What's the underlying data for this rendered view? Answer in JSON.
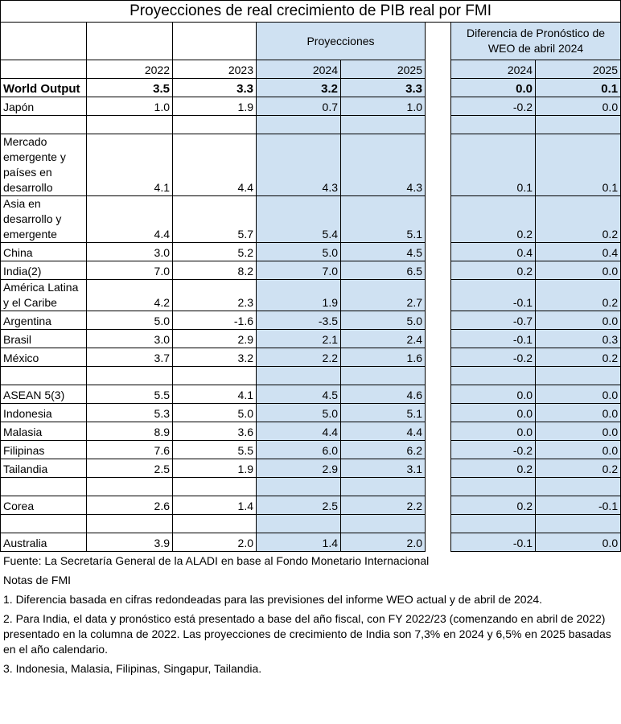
{
  "title": "Proyecciones de real crecimiento de PIB real por FMI",
  "headers": {
    "projections": "Proyecciones",
    "difference": "Diferencia de Pronóstico de WEO de abril 2024",
    "years": [
      "2022",
      "2023",
      "2024",
      "2025",
      "2024",
      "2025"
    ]
  },
  "rows": [
    {
      "label": "World Output",
      "values": [
        "3.5",
        "3.3",
        "3.2",
        "3.3",
        "0.0",
        "0.1"
      ],
      "bold": true
    },
    {
      "label": "Japón",
      "values": [
        "1.0",
        "1.9",
        "0.7",
        "1.0",
        "-0.2",
        "0.0"
      ]
    },
    {
      "blank": true
    },
    {
      "label": "Mercado emergente y países en desarrollo",
      "values": [
        "4.1",
        "4.4",
        "4.3",
        "4.3",
        "0.1",
        "0.1"
      ]
    },
    {
      "label": "Asia en desarrollo y emergente",
      "values": [
        "4.4",
        "5.7",
        "5.4",
        "5.1",
        "0.2",
        "0.2"
      ]
    },
    {
      "label": "China",
      "values": [
        "3.0",
        "5.2",
        "5.0",
        "4.5",
        "0.4",
        "0.4"
      ]
    },
    {
      "label": "India(2)",
      "values": [
        "7.0",
        "8.2",
        "7.0",
        "6.5",
        "0.2",
        "0.0"
      ]
    },
    {
      "label": "América Latina y el Caribe",
      "values": [
        "4.2",
        "2.3",
        "1.9",
        "2.7",
        "-0.1",
        "0.2"
      ]
    },
    {
      "label": "Argentina",
      "values": [
        "5.0",
        "-1.6",
        "-3.5",
        "5.0",
        "-0.7",
        "0.0"
      ]
    },
    {
      "label": "Brasil",
      "values": [
        "3.0",
        "2.9",
        "2.1",
        "2.4",
        "-0.1",
        "0.3"
      ]
    },
    {
      "label": "México",
      "values": [
        "3.7",
        "3.2",
        "2.2",
        "1.6",
        "-0.2",
        "0.2"
      ]
    },
    {
      "blank": true
    },
    {
      "label": "ASEAN 5(3)",
      "values": [
        "5.5",
        "4.1",
        "4.5",
        "4.6",
        "0.0",
        "0.0"
      ]
    },
    {
      "label": "Indonesia",
      "values": [
        "5.3",
        "5.0",
        "5.0",
        "5.1",
        "0.0",
        "0.0"
      ]
    },
    {
      "label": "Malasia",
      "values": [
        "8.9",
        "3.6",
        "4.4",
        "4.4",
        "0.0",
        "0.0"
      ]
    },
    {
      "label": "Filipinas",
      "values": [
        "7.6",
        "5.5",
        "6.0",
        "6.2",
        "-0.2",
        "0.0"
      ]
    },
    {
      "label": "Tailandia",
      "values": [
        "2.5",
        "1.9",
        "2.9",
        "3.1",
        "0.2",
        "0.2"
      ]
    },
    {
      "blank": true
    },
    {
      "label": "Corea",
      "values": [
        "2.6",
        "1.4",
        "2.5",
        "2.2",
        "0.2",
        "-0.1"
      ]
    },
    {
      "blank": true
    },
    {
      "label": "Australia",
      "values": [
        "3.9",
        "2.0",
        "1.4",
        "2.0",
        "-0.1",
        "0.0"
      ]
    }
  ],
  "notes": [
    "Fuente: La Secretaría General de la ALADI en base al Fondo Monetario Internacional",
    "Notas de FMI",
    "1. Diferencia basada en cifras redondeadas para las previsiones del informe WEO actual y de abril de 2024.",
    "2. Para India, el data y pronóstico está presentado a base del año fiscal, con FY 2022/23 (comenzando en abril de 2022) presentado en la columna de 2022. Las proyecciones de crecimiento de India son 7,3% en 2024 y 6,5% en 2025 basadas en el año calendario.",
    "3. Indonesia, Malasia, Filipinas, Singapur, Tailandia."
  ]
}
